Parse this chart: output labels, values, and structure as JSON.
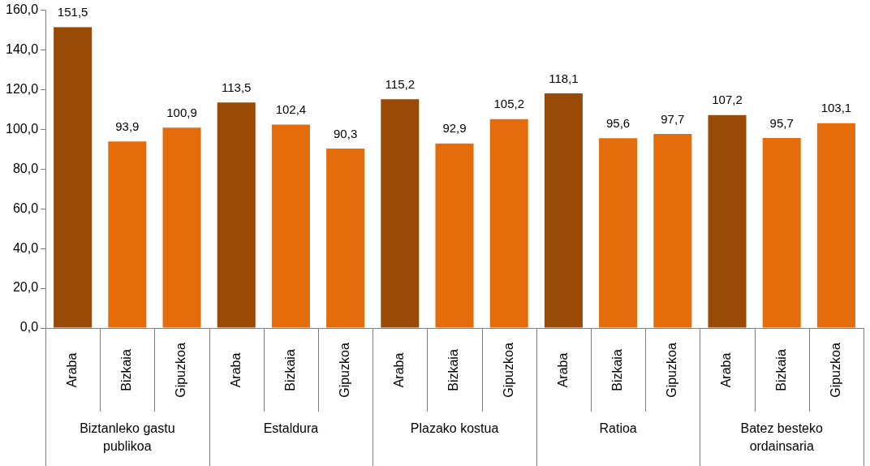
{
  "chart_data": {
    "type": "bar",
    "categories": [
      "Araba",
      "Bizkaia",
      "Gipuzkoa",
      "Araba",
      "Bizkaia",
      "Gipuzkoa",
      "Araba",
      "Bizkaia",
      "Gipuzkoa",
      "Araba",
      "Bizkaia",
      "Gipuzkoa",
      "Araba",
      "Bizkaia",
      "Gipuzkoa"
    ],
    "values": [
      151.5,
      93.9,
      100.9,
      113.5,
      102.4,
      90.3,
      115.2,
      92.9,
      105.2,
      118.1,
      95.6,
      97.7,
      107.2,
      95.7,
      103.1
    ],
    "colors": [
      "#9a4a07",
      "#e46c0a",
      "#e46c0a",
      "#9a4a07",
      "#e46c0a",
      "#e46c0a",
      "#9a4a07",
      "#e46c0a",
      "#e46c0a",
      "#9a4a07",
      "#e46c0a",
      "#e46c0a",
      "#9a4a07",
      "#e46c0a",
      "#e46c0a"
    ],
    "value_labels": [
      "151,5",
      "93,9",
      "100,9",
      "113,5",
      "102,4",
      "90,3",
      "115,2",
      "92,9",
      "105,2",
      "118,1",
      "95,6",
      "97,7",
      "107,2",
      "95,7",
      "103,1"
    ],
    "ylim": [
      0,
      160
    ],
    "yticks": [
      {
        "value": 0,
        "label": "0,0"
      },
      {
        "value": 20,
        "label": "20,0"
      },
      {
        "value": 40,
        "label": "40,0"
      },
      {
        "value": 60,
        "label": "60,0"
      },
      {
        "value": 80,
        "label": "80,0"
      },
      {
        "value": 100,
        "label": "100,0"
      },
      {
        "value": 120,
        "label": "120,0"
      },
      {
        "value": 140,
        "label": "140,0"
      },
      {
        "value": 160,
        "label": "160,0"
      }
    ],
    "annotations": [
      "Biztanleko gastu publikoa",
      "Estaldura",
      "Plazako kostua",
      "Ratioa",
      "Batez besteko ordainsaria"
    ]
  }
}
